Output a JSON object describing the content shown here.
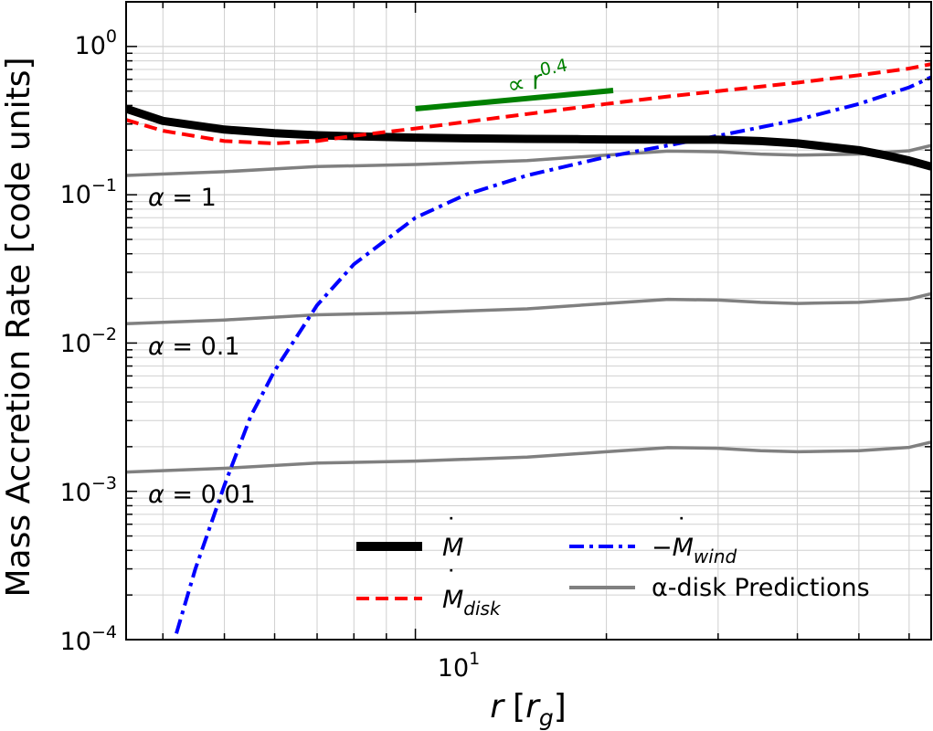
{
  "chart_data": {
    "type": "line",
    "xscale": "log",
    "yscale": "log",
    "xlim": [
      3.5,
      65
    ],
    "ylim": [
      0.0001,
      2
    ],
    "xlabel": {
      "base": "r",
      "bracket_open": "[",
      "unit": "r",
      "unit_sub": "g",
      "bracket_close": "]"
    },
    "ylabel": "Mass Accretion Rate [code units]",
    "x_tick_labels": [
      {
        "value": 10,
        "base": "10",
        "exp": "1"
      }
    ],
    "y_tick_labels": [
      {
        "value": 1,
        "base": "10",
        "exp": "0"
      },
      {
        "value": 0.1,
        "base": "10",
        "exp": "−1"
      },
      {
        "value": 0.01,
        "base": "10",
        "exp": "−2"
      },
      {
        "value": 0.001,
        "base": "10",
        "exp": "−3"
      },
      {
        "value": 0.0001,
        "base": "10",
        "exp": "−4"
      }
    ],
    "grid": true,
    "series": [
      {
        "name": "M_dot",
        "color": "#000000",
        "style": "solid",
        "x": [
          3.5,
          4,
          5,
          6,
          7,
          8,
          10,
          12,
          15,
          18,
          20,
          25,
          30,
          35,
          40,
          45,
          50,
          55,
          60,
          65
        ],
        "y": [
          0.38,
          0.315,
          0.275,
          0.26,
          0.252,
          0.248,
          0.243,
          0.24,
          0.238,
          0.237,
          0.236,
          0.235,
          0.235,
          0.23,
          0.222,
          0.21,
          0.2,
          0.185,
          0.17,
          0.155
        ]
      },
      {
        "name": "M_dot_disk",
        "color": "#ff0000",
        "style": "dashed",
        "x": [
          3.5,
          4,
          5,
          6,
          7,
          8,
          10,
          12,
          15,
          20,
          25,
          30,
          40,
          50,
          60,
          65
        ],
        "y": [
          0.32,
          0.27,
          0.23,
          0.222,
          0.23,
          0.25,
          0.28,
          0.31,
          0.35,
          0.41,
          0.46,
          0.5,
          0.57,
          0.64,
          0.71,
          0.76
        ]
      },
      {
        "name": "-M_dot_wind",
        "color": "#0000ff",
        "style": "dashdot",
        "x": [
          4.2,
          4.5,
          5,
          5.5,
          6,
          7,
          8,
          10,
          12,
          15,
          20,
          25,
          30,
          40,
          50,
          60,
          65
        ],
        "y": [
          0.00011,
          0.0003,
          0.0011,
          0.0032,
          0.0065,
          0.018,
          0.034,
          0.07,
          0.1,
          0.135,
          0.18,
          0.215,
          0.25,
          0.32,
          0.41,
          0.53,
          0.62
        ]
      },
      {
        "name": "alpha-disk, alpha=1",
        "color": "#808080",
        "style": "solid",
        "x": [
          3.5,
          5,
          7,
          10,
          15,
          20,
          25,
          30,
          35,
          40,
          50,
          60,
          65
        ],
        "y": [
          0.135,
          0.143,
          0.155,
          0.16,
          0.17,
          0.185,
          0.197,
          0.195,
          0.188,
          0.185,
          0.188,
          0.198,
          0.215
        ]
      },
      {
        "name": "alpha-disk, alpha=0.1",
        "color": "#808080",
        "style": "solid",
        "x": [
          3.5,
          5,
          7,
          10,
          15,
          20,
          25,
          30,
          35,
          40,
          50,
          60,
          65
        ],
        "y": [
          0.0135,
          0.0143,
          0.0155,
          0.016,
          0.017,
          0.0185,
          0.0197,
          0.0195,
          0.0188,
          0.0185,
          0.0188,
          0.0198,
          0.0215
        ]
      },
      {
        "name": "alpha-disk, alpha=0.01",
        "color": "#808080",
        "style": "solid",
        "x": [
          3.5,
          5,
          7,
          10,
          15,
          20,
          25,
          30,
          35,
          40,
          50,
          60,
          65
        ],
        "y": [
          0.00135,
          0.00143,
          0.00155,
          0.0016,
          0.0017,
          0.00185,
          0.00197,
          0.00195,
          0.00188,
          0.00185,
          0.00188,
          0.00198,
          0.00215
        ]
      }
    ],
    "reference_line": {
      "color": "#008000",
      "x": [
        10,
        20.5
      ],
      "y": [
        0.38,
        0.505
      ],
      "label_prefix": "∝",
      "label_base": "r",
      "label_exp": "0.4"
    },
    "annotations": [
      {
        "greek": "α",
        "text": " = 1",
        "x": 3.7,
        "y": 0.095
      },
      {
        "greek": "α",
        "text": " = 0.1",
        "x": 3.7,
        "y": 0.0095
      },
      {
        "greek": "α",
        "text": " = 0.01",
        "x": 3.7,
        "y": 0.00095
      }
    ],
    "legend": {
      "position": "lower-right",
      "entries": [
        {
          "label": "M",
          "sub": "",
          "prefix": ""
        },
        {
          "label": "M",
          "sub": "disk",
          "prefix": ""
        },
        {
          "label": "M",
          "sub": "wind",
          "prefix": "−"
        },
        {
          "label": "α-disk Predictions",
          "sub": "",
          "prefix": ""
        }
      ]
    }
  }
}
